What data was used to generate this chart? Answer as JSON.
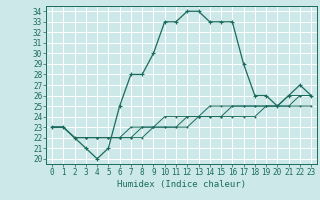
{
  "xlabel": "Humidex (Indice chaleur)",
  "bg_color": "#cce8e8",
  "grid_color": "#ffffff",
  "line_color": "#1a6b5e",
  "xlim": [
    -0.5,
    23.5
  ],
  "ylim": [
    19.5,
    34.5
  ],
  "xticks": [
    0,
    1,
    2,
    3,
    4,
    5,
    6,
    7,
    8,
    9,
    10,
    11,
    12,
    13,
    14,
    15,
    16,
    17,
    18,
    19,
    20,
    21,
    22,
    23
  ],
  "yticks": [
    20,
    21,
    22,
    23,
    24,
    25,
    26,
    27,
    28,
    29,
    30,
    31,
    32,
    33,
    34
  ],
  "series": [
    [
      23,
      23,
      22,
      21,
      20,
      21,
      25,
      28,
      28,
      30,
      33,
      33,
      34,
      34,
      33,
      33,
      33,
      29,
      26,
      26,
      25,
      26,
      27,
      26
    ],
    [
      23,
      23,
      22,
      22,
      22,
      22,
      22,
      23,
      23,
      23,
      24,
      24,
      24,
      24,
      25,
      25,
      25,
      25,
      25,
      25,
      25,
      26,
      26,
      26
    ],
    [
      23,
      23,
      22,
      22,
      22,
      22,
      22,
      22,
      23,
      23,
      23,
      23,
      24,
      24,
      24,
      24,
      25,
      25,
      25,
      25,
      25,
      25,
      26,
      26
    ],
    [
      23,
      23,
      22,
      22,
      22,
      22,
      22,
      22,
      22,
      23,
      23,
      23,
      23,
      24,
      24,
      24,
      24,
      24,
      24,
      25,
      25,
      25,
      25,
      25
    ]
  ],
  "label_fontsize": 5.5,
  "xlabel_fontsize": 6.5
}
